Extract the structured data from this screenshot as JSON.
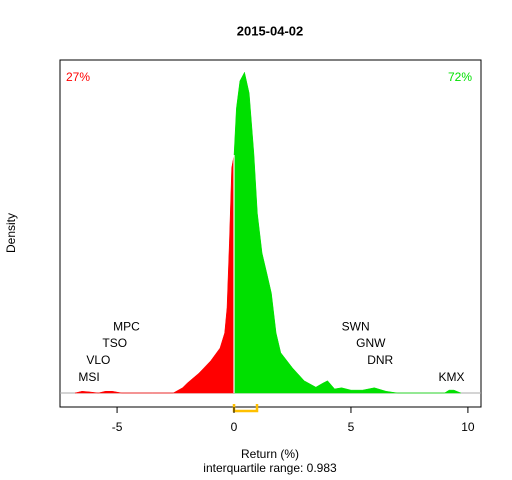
{
  "chart_data": {
    "type": "density",
    "title": "2015-04-02",
    "xlabel": "Return (%)",
    "ylabel": "Density",
    "subtitle": "interquartile range: 0.983",
    "x": [
      -6.8,
      -6.5,
      -6.2,
      -5.8,
      -5.5,
      -5.2,
      -4.8,
      -3.5,
      -2.6,
      -2.2,
      -2,
      -1.5,
      -1,
      -0.6,
      -0.4,
      -0.3,
      -0.2,
      -0.1,
      0,
      0.1,
      0.25,
      0.45,
      0.65,
      0.85,
      1,
      1.2,
      1.4,
      1.6,
      1.8,
      2,
      2.5,
      3,
      3.5,
      3.8,
      4,
      4.3,
      4.6,
      5,
      5.5,
      6,
      6.5,
      7,
      9,
      9.2,
      9.4,
      9.7
    ],
    "values": [
      0,
      0.003,
      0.002,
      0,
      0.003,
      0.003,
      0,
      0,
      0,
      0.009,
      0.017,
      0.034,
      0.055,
      0.077,
      0.103,
      0.146,
      0.257,
      0.386,
      0.408,
      0.488,
      0.535,
      0.55,
      0.514,
      0.411,
      0.308,
      0.24,
      0.206,
      0.171,
      0.103,
      0.069,
      0.043,
      0.021,
      0.01,
      0.017,
      0.021,
      0.007,
      0.009,
      0.005,
      0.005,
      0.009,
      0.003,
      0,
      0,
      0.005,
      0.005,
      0
    ],
    "split": 0,
    "negative_color": "#ff0000",
    "positive_color": "#00e000",
    "negative_share": "27%",
    "positive_share": "72%",
    "iqr": [
      0,
      0.983
    ],
    "iqr_color": "#ffc000",
    "labels": [
      {
        "text": "MSI",
        "x": -6.2,
        "y": 0.026
      },
      {
        "text": "VLO",
        "x": -5.8,
        "y": 0.055
      },
      {
        "text": "TSO",
        "x": -5.1,
        "y": 0.084
      },
      {
        "text": "MPC",
        "x": -4.6,
        "y": 0.113
      },
      {
        "text": "SWN",
        "x": 5.2,
        "y": 0.113
      },
      {
        "text": "GNW",
        "x": 5.85,
        "y": 0.084
      },
      {
        "text": "DNR",
        "x": 6.25,
        "y": 0.055
      },
      {
        "text": "KMX",
        "x": 9.3,
        "y": 0.026
      }
    ],
    "xlim": [
      -7.44,
      10.56
    ],
    "ylim": [
      -0.024,
      0.571
    ],
    "xticks": [
      -5,
      0,
      5,
      10
    ]
  }
}
